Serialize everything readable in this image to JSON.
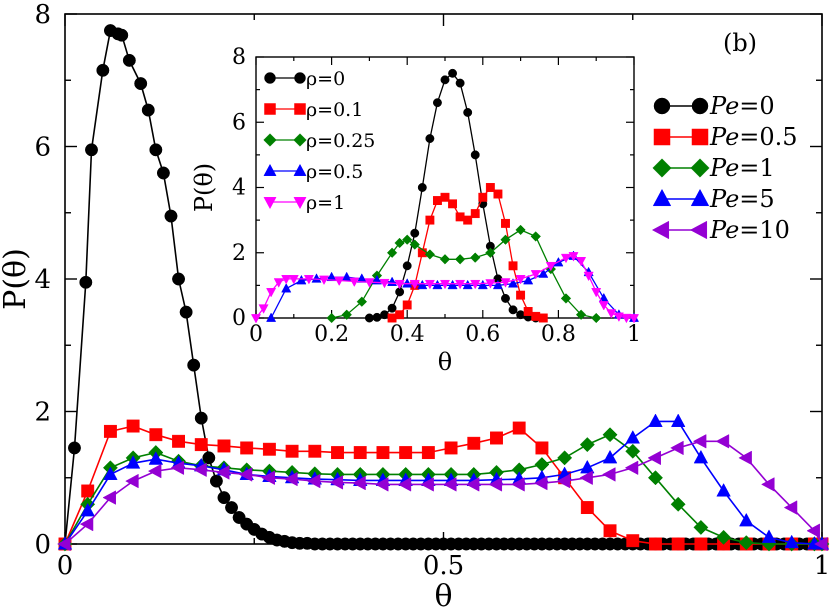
{
  "chart_data": [
    {
      "type": "line",
      "title": "",
      "panel_label": "(b)",
      "xlabel": "θ",
      "ylabel": "P(θ)",
      "xlim": [
        0,
        1
      ],
      "ylim": [
        0,
        8
      ],
      "xticks": [
        0,
        0.5,
        1
      ],
      "xtick_labels": [
        "0",
        "0.5",
        "1"
      ],
      "yticks": [
        0,
        2,
        4,
        6,
        8
      ],
      "ytick_labels": [
        "0",
        "2",
        "4",
        "6",
        "8"
      ],
      "legend_position": "right",
      "series": [
        {
          "name": "Pe=0",
          "legend_prefix": "Pe",
          "legend_value": "=0",
          "color": "#000000",
          "marker": "circle",
          "x": [
            0,
            0.0125,
            0.0275,
            0.035,
            0.05,
            0.06,
            0.07,
            0.075,
            0.085,
            0.1,
            0.11,
            0.12,
            0.13,
            0.14,
            0.15,
            0.16,
            0.17,
            0.18,
            0.19,
            0.2,
            0.21,
            0.22,
            0.23,
            0.24,
            0.25,
            0.26,
            0.27,
            0.28,
            0.29,
            0.3,
            0.31,
            0.32,
            0.33,
            0.34,
            0.35,
            0.36,
            0.37,
            0.38,
            0.39,
            0.4,
            0.41,
            0.42,
            0.43,
            0.44,
            0.45,
            0.46,
            0.47,
            0.48,
            0.49,
            0.5,
            0.51,
            0.52,
            0.53,
            0.54,
            0.55,
            0.56,
            0.57,
            0.58,
            0.59,
            0.6,
            0.61,
            0.62,
            0.63,
            0.64,
            0.65,
            0.66,
            0.67,
            0.68,
            0.69,
            0.7,
            0.71,
            0.72,
            0.73,
            0.74,
            0.75,
            0.76,
            0.77,
            0.78,
            0.79,
            0.8,
            0.81,
            0.82,
            0.83,
            0.84,
            0.85,
            0.86,
            0.87,
            0.88,
            0.89,
            0.9,
            0.91,
            0.92,
            0.93,
            0.94,
            0.95,
            0.96,
            0.97,
            0.98,
            0.99,
            1.0
          ],
          "y": [
            0,
            1.45,
            3.95,
            5.95,
            7.15,
            7.75,
            7.7,
            7.68,
            7.3,
            6.95,
            6.55,
            5.95,
            5.6,
            4.95,
            4.0,
            3.5,
            2.7,
            1.9,
            1.3,
            0.95,
            0.7,
            0.55,
            0.4,
            0.3,
            0.22,
            0.15,
            0.1,
            0.06,
            0.04,
            0.02,
            0.01,
            0.01,
            0,
            0,
            0,
            0,
            0,
            0,
            0,
            0,
            0,
            0,
            0,
            0,
            0,
            0,
            0,
            0,
            0,
            0,
            0,
            0,
            0,
            0,
            0,
            0,
            0,
            0,
            0,
            0,
            0,
            0,
            0,
            0,
            0,
            0,
            0,
            0,
            0,
            0,
            0,
            0,
            0,
            0,
            0,
            0,
            0,
            0,
            0,
            0,
            0,
            0,
            0,
            0,
            0,
            0,
            0,
            0,
            0,
            0,
            0,
            0,
            0,
            0,
            0,
            0,
            0,
            0,
            0,
            0
          ]
        },
        {
          "name": "Pe=0.5",
          "legend_prefix": "Pe",
          "legend_value": "=0.5",
          "color": "#ff0000",
          "marker": "square",
          "x": [
            0,
            0.03,
            0.06,
            0.09,
            0.12,
            0.15,
            0.18,
            0.21,
            0.24,
            0.27,
            0.3,
            0.33,
            0.36,
            0.39,
            0.42,
            0.45,
            0.48,
            0.51,
            0.54,
            0.57,
            0.6,
            0.63,
            0.66,
            0.69,
            0.72,
            0.75,
            0.78,
            0.81,
            0.84,
            0.87,
            0.9,
            0.93,
            0.96,
            0.99,
            1.0
          ],
          "y": [
            0,
            0.8,
            1.7,
            1.78,
            1.65,
            1.55,
            1.5,
            1.48,
            1.45,
            1.43,
            1.4,
            1.4,
            1.38,
            1.38,
            1.38,
            1.38,
            1.38,
            1.45,
            1.52,
            1.6,
            1.75,
            1.45,
            1.0,
            0.55,
            0.2,
            0.05,
            0,
            0,
            0,
            0,
            0,
            0,
            0,
            0,
            0
          ]
        },
        {
          "name": "Pe=1",
          "legend_prefix": "Pe",
          "legend_value": "=1",
          "color": "#008000",
          "marker": "diamond",
          "x": [
            0,
            0.03,
            0.06,
            0.09,
            0.12,
            0.15,
            0.18,
            0.21,
            0.24,
            0.27,
            0.3,
            0.33,
            0.36,
            0.39,
            0.42,
            0.45,
            0.48,
            0.51,
            0.54,
            0.57,
            0.6,
            0.63,
            0.66,
            0.69,
            0.72,
            0.75,
            0.78,
            0.81,
            0.84,
            0.87,
            0.9,
            0.93,
            0.96,
            0.99,
            1.0
          ],
          "y": [
            0,
            0.6,
            1.15,
            1.3,
            1.38,
            1.25,
            1.18,
            1.15,
            1.12,
            1.1,
            1.08,
            1.06,
            1.05,
            1.05,
            1.05,
            1.05,
            1.05,
            1.05,
            1.05,
            1.08,
            1.12,
            1.2,
            1.3,
            1.5,
            1.65,
            1.4,
            1.0,
            0.6,
            0.25,
            0.1,
            0.02,
            0,
            0,
            0,
            0
          ]
        },
        {
          "name": "Pe=5",
          "legend_prefix": "Pe",
          "legend_value": "=5",
          "color": "#0000ff",
          "marker": "triangle-up",
          "x": [
            0,
            0.03,
            0.06,
            0.09,
            0.12,
            0.15,
            0.18,
            0.21,
            0.24,
            0.27,
            0.3,
            0.33,
            0.36,
            0.39,
            0.42,
            0.45,
            0.48,
            0.51,
            0.54,
            0.57,
            0.6,
            0.63,
            0.66,
            0.69,
            0.72,
            0.75,
            0.78,
            0.81,
            0.84,
            0.87,
            0.9,
            0.93,
            0.96,
            0.99,
            1.0
          ],
          "y": [
            0,
            0.5,
            1.05,
            1.22,
            1.28,
            1.22,
            1.18,
            1.12,
            1.05,
            1.02,
            1.0,
            0.98,
            0.97,
            0.96,
            0.96,
            0.96,
            0.96,
            0.96,
            0.96,
            0.97,
            0.98,
            1.0,
            1.05,
            1.15,
            1.3,
            1.6,
            1.85,
            1.85,
            1.3,
            0.8,
            0.35,
            0.1,
            0.02,
            0,
            0
          ]
        },
        {
          "name": "Pe=10",
          "legend_prefix": "Pe",
          "legend_value": "=10",
          "color": "#9400d3",
          "marker": "triangle-left",
          "x": [
            0,
            0.03,
            0.06,
            0.09,
            0.12,
            0.15,
            0.18,
            0.21,
            0.24,
            0.27,
            0.3,
            0.33,
            0.36,
            0.39,
            0.42,
            0.45,
            0.48,
            0.51,
            0.54,
            0.57,
            0.6,
            0.63,
            0.66,
            0.69,
            0.72,
            0.75,
            0.78,
            0.81,
            0.84,
            0.87,
            0.9,
            0.93,
            0.96,
            0.99,
            1.0
          ],
          "y": [
            0,
            0.3,
            0.7,
            0.95,
            1.1,
            1.15,
            1.12,
            1.08,
            1.05,
            1.0,
            0.98,
            0.95,
            0.93,
            0.92,
            0.9,
            0.9,
            0.9,
            0.9,
            0.9,
            0.9,
            0.9,
            0.92,
            0.95,
            1.0,
            1.05,
            1.15,
            1.3,
            1.45,
            1.55,
            1.55,
            1.3,
            0.9,
            0.55,
            0.2,
            0
          ]
        }
      ]
    },
    {
      "type": "line",
      "title": "",
      "inset": true,
      "xlabel": "θ",
      "ylabel": "P(θ)",
      "xlim": [
        0,
        1
      ],
      "ylim": [
        0,
        8
      ],
      "xticks": [
        0,
        0.2,
        0.4,
        0.6,
        0.8,
        1
      ],
      "xtick_labels": [
        "0",
        "0.2",
        "0.4",
        "0.6",
        "0.8",
        "1"
      ],
      "yticks": [
        0,
        2,
        4,
        6,
        8
      ],
      "ytick_labels": [
        "0",
        "2",
        "4",
        "6",
        "8"
      ],
      "legend_position": "top-left",
      "series": [
        {
          "name": "ρ=0",
          "color": "#000000",
          "marker": "circle",
          "x": [
            0.3,
            0.32,
            0.34,
            0.36,
            0.38,
            0.4,
            0.42,
            0.44,
            0.46,
            0.48,
            0.5,
            0.52,
            0.54,
            0.56,
            0.58,
            0.6,
            0.62,
            0.64,
            0.66,
            0.68,
            0.7,
            0.72,
            0.74
          ],
          "y": [
            0,
            0.02,
            0.1,
            0.3,
            0.8,
            1.6,
            2.6,
            4.0,
            5.5,
            6.6,
            7.3,
            7.5,
            7.2,
            6.3,
            5.0,
            3.5,
            2.2,
            1.2,
            0.6,
            0.25,
            0.1,
            0.03,
            0
          ]
        },
        {
          "name": "ρ=0.1",
          "color": "#ff0000",
          "marker": "square",
          "x": [
            0.36,
            0.38,
            0.4,
            0.42,
            0.44,
            0.46,
            0.48,
            0.5,
            0.52,
            0.54,
            0.56,
            0.58,
            0.6,
            0.62,
            0.64,
            0.66,
            0.68,
            0.7,
            0.72,
            0.74,
            0.76
          ],
          "y": [
            0,
            0.1,
            0.4,
            1.0,
            2.0,
            3.0,
            3.6,
            3.7,
            3.5,
            3.1,
            3.0,
            3.2,
            3.7,
            4.0,
            3.8,
            2.9,
            1.6,
            0.7,
            0.2,
            0.05,
            0
          ]
        },
        {
          "name": "ρ=0.25",
          "color": "#008000",
          "marker": "diamond",
          "x": [
            0.2,
            0.24,
            0.28,
            0.32,
            0.36,
            0.38,
            0.4,
            0.42,
            0.46,
            0.5,
            0.54,
            0.58,
            0.62,
            0.66,
            0.7,
            0.74,
            0.78,
            0.82,
            0.86,
            0.9
          ],
          "y": [
            0,
            0.1,
            0.5,
            1.3,
            2.0,
            2.3,
            2.4,
            2.25,
            1.95,
            1.8,
            1.8,
            1.85,
            2.0,
            2.4,
            2.7,
            2.5,
            1.5,
            0.6,
            0.1,
            0
          ]
        },
        {
          "name": "ρ=0.5",
          "color": "#0000ff",
          "marker": "triangle-up",
          "x": [
            0.04,
            0.08,
            0.12,
            0.16,
            0.2,
            0.24,
            0.28,
            0.32,
            0.36,
            0.4,
            0.44,
            0.48,
            0.52,
            0.56,
            0.6,
            0.64,
            0.68,
            0.72,
            0.76,
            0.8,
            0.84,
            0.88,
            0.92,
            0.96,
            1.0
          ],
          "y": [
            0,
            0.9,
            1.15,
            1.2,
            1.25,
            1.25,
            1.2,
            1.15,
            1.1,
            1.05,
            1.0,
            1.0,
            1.0,
            1.0,
            1.0,
            1.0,
            1.05,
            1.15,
            1.35,
            1.7,
            1.9,
            1.4,
            0.6,
            0.1,
            0
          ]
        },
        {
          "name": "ρ=1",
          "color": "#ff00ff",
          "marker": "triangle-down",
          "x": [
            0,
            0.02,
            0.04,
            0.06,
            0.08,
            0.1,
            0.14,
            0.18,
            0.22,
            0.26,
            0.3,
            0.34,
            0.38,
            0.42,
            0.46,
            0.5,
            0.54,
            0.58,
            0.62,
            0.66,
            0.7,
            0.74,
            0.78,
            0.82,
            0.84,
            0.86,
            0.88,
            0.9,
            0.92,
            0.94,
            0.96,
            0.98,
            1.0
          ],
          "y": [
            0,
            0.3,
            0.8,
            1.1,
            1.2,
            1.2,
            1.2,
            1.18,
            1.15,
            1.12,
            1.1,
            1.08,
            1.05,
            1.05,
            1.05,
            1.05,
            1.05,
            1.05,
            1.07,
            1.1,
            1.2,
            1.35,
            1.6,
            1.85,
            1.9,
            1.75,
            1.3,
            0.8,
            0.4,
            0.15,
            0.05,
            0.01,
            0
          ]
        }
      ]
    }
  ]
}
